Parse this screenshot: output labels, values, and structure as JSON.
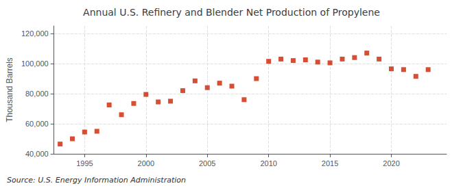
{
  "chart_data": {
    "type": "scatter",
    "title": "Annual U.S. Refinery and Blender Net Production of Propylene",
    "ylabel": "Thousand Barrels",
    "annotation": "Source: U.S. Energy Information Administration",
    "x": [
      1993,
      1994,
      1995,
      1996,
      1997,
      1998,
      1999,
      2000,
      2001,
      2002,
      2003,
      2004,
      2005,
      2006,
      2007,
      2008,
      2009,
      2010,
      2011,
      2012,
      2013,
      2014,
      2015,
      2016,
      2017,
      2018,
      2019,
      2020,
      2021,
      2022,
      2023
    ],
    "values": [
      46500,
      50000,
      54500,
      55000,
      72500,
      66000,
      73500,
      79500,
      74500,
      75000,
      82000,
      88500,
      84000,
      87000,
      85000,
      76000,
      90000,
      101500,
      103000,
      102000,
      102500,
      101000,
      100500,
      103000,
      104000,
      107000,
      103000,
      96500,
      96000,
      91500,
      96000
    ],
    "color": "#cc2200",
    "marker": "square",
    "xlim": [
      1992.5,
      2024.5
    ],
    "xticks": [
      1995,
      2000,
      2005,
      2010,
      2015,
      2020
    ],
    "ylim": [
      40000,
      125000
    ],
    "yticks": [
      {
        "value": 40000,
        "label": "40,000"
      },
      {
        "value": 60000,
        "label": "60,000"
      },
      {
        "value": 80000,
        "label": "80,000"
      },
      {
        "value": 100000,
        "label": "100,000"
      },
      {
        "value": 120000,
        "label": "120,000"
      }
    ],
    "grid": true
  }
}
